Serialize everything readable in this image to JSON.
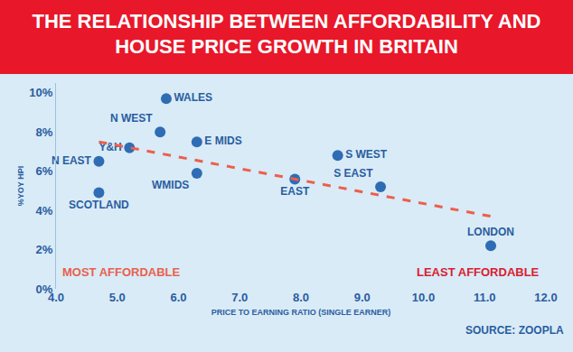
{
  "chart_data": {
    "type": "scatter",
    "title": "THE RELATIONSHIP BETWEEN AFFORDABILITY AND HOUSE PRICE GROWTH IN BRITAIN",
    "x_label": "PRICE TO EARNING RATIO (SINGLE EARNER)",
    "y_label": "%YOY HPI",
    "annotations": [
      "MOST AFFORDABLE",
      "LEAST AFFORDABLE"
    ],
    "source": "SOURCE: ZOOPLA",
    "series": [
      {
        "type": "scatter",
        "color": "#2e6db4",
        "marker": "circle",
        "labels": [
          "WALES",
          "N WEST",
          "N EAST",
          "Y&H",
          "SCOTLAND",
          "E MIDS",
          "WMIDS",
          "S WEST",
          "EAST",
          "S EAST",
          "LONDON"
        ],
        "x": [
          5.8,
          5.7,
          4.7,
          5.2,
          4.7,
          6.3,
          6.3,
          8.6,
          7.9,
          9.3,
          11.1
        ],
        "values": [
          9.7,
          8.0,
          6.5,
          7.2,
          4.9,
          7.5,
          5.9,
          6.8,
          5.6,
          5.2,
          2.2
        ]
      },
      {
        "type": "line",
        "color": "#ee5e4c",
        "line_style": "dash",
        "x": [
          4.7,
          11.1
        ],
        "values": [
          7.5,
          3.7
        ]
      }
    ],
    "xlim": [
      4,
      12
    ],
    "xticks": [
      {
        "value": 4,
        "label": "4.0"
      },
      {
        "value": 5,
        "label": "5.0"
      },
      {
        "value": 6,
        "label": "6.0"
      },
      {
        "value": 7,
        "label": "7.0"
      },
      {
        "value": 8,
        "label": "8.0"
      },
      {
        "value": 9,
        "label": "9.0"
      },
      {
        "value": 10,
        "label": "10.0"
      },
      {
        "value": 11,
        "label": "11.0"
      },
      {
        "value": 12,
        "label": "12.0"
      }
    ],
    "ylim": [
      0,
      10.5
    ],
    "yticks": [
      {
        "value": 0,
        "label": "0%"
      },
      {
        "value": 2,
        "label": "2%"
      },
      {
        "value": 4,
        "label": "4%"
      },
      {
        "value": 6,
        "label": "6%"
      },
      {
        "value": 8,
        "label": "8%"
      },
      {
        "value": 10,
        "label": "10%"
      }
    ],
    "grid": false
  }
}
